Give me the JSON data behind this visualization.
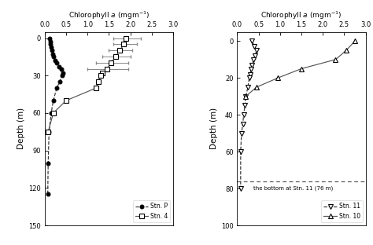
{
  "left_panel": {
    "title": "Chlorophyll $a$ (mgm$^{-1}$)",
    "ylabel": "Depth (m)",
    "xlim": [
      0.0,
      3.0
    ],
    "ylim": [
      150,
      -5
    ],
    "xticks": [
      0.0,
      0.5,
      1.0,
      1.5,
      2.0,
      2.5,
      3.0
    ],
    "yticks": [
      0,
      30,
      60,
      90,
      120,
      150
    ],
    "stn4": {
      "depth": [
        0,
        5,
        10,
        15,
        20,
        25,
        28,
        30,
        35,
        40,
        50,
        60,
        75
      ],
      "chl": [
        1.9,
        1.85,
        1.75,
        1.65,
        1.55,
        1.45,
        1.35,
        1.3,
        1.25,
        1.2,
        0.5,
        0.2,
        0.08
      ],
      "err_depths": [
        0,
        5,
        10,
        15,
        20,
        25
      ],
      "err_chl": [
        1.9,
        1.85,
        1.75,
        1.65,
        1.55,
        1.45
      ],
      "err_lo": [
        0.3,
        0.25,
        0.25,
        0.3,
        0.35,
        0.45
      ],
      "err_hi": [
        0.35,
        0.3,
        0.3,
        0.35,
        0.4,
        0.5
      ],
      "label": "Stn. 4",
      "marker": "s",
      "linestyle": "-"
    },
    "stnP": {
      "depth": [
        0,
        3,
        5,
        7,
        10,
        13,
        15,
        18,
        20,
        23,
        25,
        28,
        30,
        35,
        40,
        50,
        60,
        75,
        100,
        125
      ],
      "chl": [
        0.12,
        0.13,
        0.14,
        0.15,
        0.17,
        0.19,
        0.21,
        0.24,
        0.28,
        0.33,
        0.38,
        0.42,
        0.4,
        0.35,
        0.28,
        0.2,
        0.15,
        0.1,
        0.08,
        0.07
      ],
      "label": "Stn. P",
      "marker": "o",
      "linestyle": "--"
    }
  },
  "right_panel": {
    "title": "Chlorophyll $a$ (mgm$^{-1}$)",
    "ylabel": "Depth (m)",
    "xlim": [
      0.0,
      3.0
    ],
    "ylim": [
      100,
      -5
    ],
    "xticks": [
      0.0,
      0.5,
      1.0,
      1.5,
      2.0,
      2.5,
      3.0
    ],
    "yticks": [
      0,
      20,
      40,
      60,
      80,
      100
    ],
    "bottom_line_depth": 76,
    "bottom_text": "the bottom at Stn. 11 (76 m)",
    "stn10": {
      "depth": [
        0,
        5,
        10,
        15,
        20,
        25,
        30
      ],
      "chl": [
        2.75,
        2.55,
        2.3,
        1.5,
        0.95,
        0.45,
        0.2
      ],
      "label": "Stn. 10",
      "marker": "^",
      "linestyle": "-"
    },
    "stn11": {
      "depth": [
        0,
        3,
        5,
        8,
        10,
        13,
        15,
        18,
        20,
        25,
        30,
        35,
        40,
        45,
        50,
        60,
        80
      ],
      "chl": [
        0.35,
        0.4,
        0.45,
        0.42,
        0.38,
        0.35,
        0.33,
        0.3,
        0.28,
        0.25,
        0.2,
        0.18,
        0.15,
        0.13,
        0.1,
        0.08,
        0.08
      ],
      "label": "Stn. 11",
      "marker": "v",
      "linestyle": "--"
    }
  }
}
